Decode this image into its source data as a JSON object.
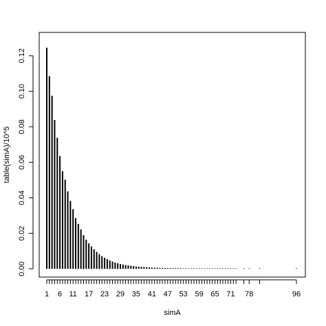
{
  "chart_data": {
    "type": "bar",
    "title": "",
    "xlabel": "simA",
    "ylabel": "table(simA)/10^5",
    "ylim": [
      0,
      0.125
    ],
    "xlim": [
      1,
      96
    ],
    "grid": false,
    "legend": "none",
    "yticks": [
      0.0,
      0.02,
      0.04,
      0.06,
      0.08,
      0.1,
      0.12
    ],
    "ytick_labels": [
      "0.00",
      "0.02",
      "0.04",
      "0.06",
      "0.08",
      "0.10",
      "0.12"
    ],
    "xtick_labels": [
      "1",
      "6",
      "11",
      "17",
      "23",
      "29",
      "35",
      "41",
      "47",
      "53",
      "59",
      "65",
      "71",
      "78",
      "96"
    ],
    "x": [
      1,
      2,
      3,
      4,
      5,
      6,
      7,
      8,
      9,
      10,
      11,
      12,
      13,
      14,
      15,
      16,
      17,
      18,
      19,
      20,
      21,
      22,
      23,
      24,
      25,
      26,
      27,
      28,
      29,
      30,
      31,
      32,
      33,
      34,
      35,
      36,
      37,
      38,
      39,
      40,
      41,
      42,
      43,
      44,
      45,
      46,
      47,
      48,
      49,
      50,
      51,
      52,
      53,
      54,
      55,
      56,
      57,
      58,
      59,
      60,
      61,
      62,
      63,
      64,
      65,
      66,
      67,
      68,
      69,
      70,
      71,
      72,
      73,
      76,
      78,
      82,
      96
    ],
    "values": [
      0.1245,
      0.1085,
      0.0975,
      0.0838,
      0.0738,
      0.0635,
      0.055,
      0.0502,
      0.0436,
      0.0382,
      0.0336,
      0.0286,
      0.0253,
      0.0222,
      0.019,
      0.0164,
      0.0143,
      0.0126,
      0.011,
      0.0095,
      0.0082,
      0.0071,
      0.0062,
      0.0054,
      0.0047,
      0.0041,
      0.0035,
      0.0031,
      0.0027,
      0.0024,
      0.0021,
      0.0019,
      0.0017,
      0.0015,
      0.0013,
      0.0012,
      0.0011,
      0.001,
      0.0009,
      0.0008,
      0.0007,
      0.0006,
      0.0006,
      0.0005,
      0.0005,
      0.0004,
      0.0004,
      0.0004,
      0.0003,
      0.0003,
      0.0003,
      0.0003,
      0.0002,
      0.0002,
      0.0002,
      0.0002,
      0.0002,
      0.0002,
      0.0002,
      0.0002,
      0.0002,
      0.0001,
      0.0001,
      0.0001,
      0.0001,
      0.0001,
      0.0001,
      0.0001,
      0.0001,
      0.0001,
      0.0001,
      0.0001,
      0.0001,
      0.0001,
      0.0001,
      0.0001,
      0.0001
    ],
    "bar_color": "#000000"
  }
}
